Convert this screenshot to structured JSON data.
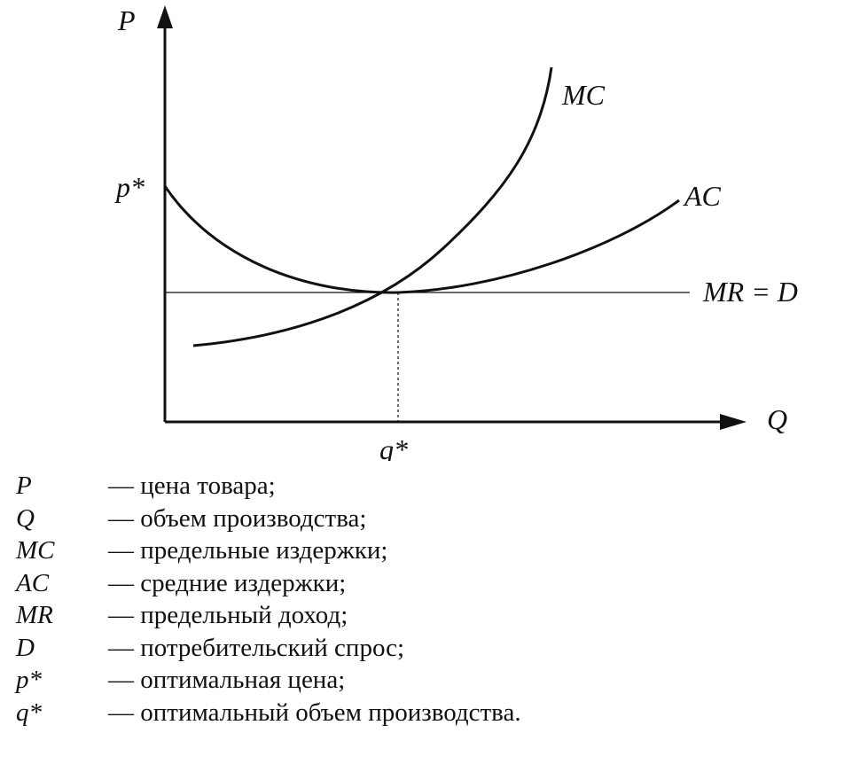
{
  "diagram": {
    "axis_y_label": "P",
    "axis_x_label": "Q",
    "price_mark": "p*",
    "quantity_mark": "q*",
    "curve_mc_label": "MC",
    "curve_ac_label": "AC",
    "line_mrd_label": "MR = D"
  },
  "legend": [
    {
      "symbol": "P",
      "text": "— цена товара;"
    },
    {
      "symbol": "Q",
      "text": "— объем производства;"
    },
    {
      "symbol": "MC",
      "text": "— предельные издержки;"
    },
    {
      "symbol": "AC",
      "text": "— средние издержки;"
    },
    {
      "symbol": "MR",
      "text": "— предельный доход;"
    },
    {
      "symbol": "D",
      "text": "— потребительский спрос;"
    },
    {
      "symbol": "p*",
      "text": "— оптимальная цена;"
    },
    {
      "symbol": "q*",
      "text": "— оптимальный объем производства."
    }
  ]
}
